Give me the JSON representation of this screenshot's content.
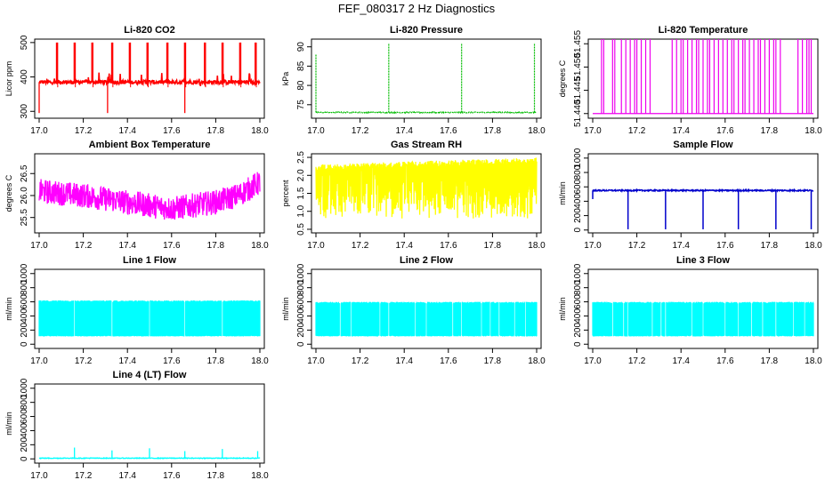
{
  "page": {
    "title": "FEF_080317  2 Hz Diagnostics"
  },
  "chart_data": [
    {
      "type": "line",
      "title": "Li-820 CO2",
      "ylabel": "Licor ppm",
      "color": "#ff0000",
      "pattern": "co2",
      "xlim": [
        17.0,
        18.0
      ],
      "ylim": [
        280,
        510
      ],
      "x_ticks": [
        "17.0",
        "17.2",
        "17.4",
        "17.6",
        "17.8",
        "18.0"
      ],
      "y_ticks": [
        {
          "v": 300,
          "label": "300"
        },
        {
          "v": 400,
          "label": "400"
        },
        {
          "v": 500,
          "label": "500"
        }
      ],
      "baseline": 385,
      "spikes_up": [
        17.08,
        17.16,
        17.24,
        17.33,
        17.41,
        17.49,
        17.58,
        17.66,
        17.75,
        17.83,
        17.91,
        17.98
      ],
      "spike_top": 500,
      "dips_to": 295
    },
    {
      "type": "line",
      "title": "Li-820 Pressure",
      "ylabel": "kPa",
      "color": "#00bb00",
      "pattern": "pressure",
      "xlim": [
        17.0,
        18.0
      ],
      "ylim": [
        71.5,
        92
      ],
      "x_ticks": [
        "17.0",
        "17.2",
        "17.4",
        "17.6",
        "17.8",
        "18.0"
      ],
      "y_ticks": [
        {
          "v": 75,
          "label": "75"
        },
        {
          "v": 80,
          "label": "80"
        },
        {
          "v": 85,
          "label": "85"
        },
        {
          "v": 90,
          "label": "90"
        }
      ],
      "baseline": 73,
      "spikes": [
        {
          "x": 17.0,
          "top": 88
        },
        {
          "x": 17.33,
          "top": 91
        },
        {
          "x": 17.66,
          "top": 91
        },
        {
          "x": 17.99,
          "top": 91
        }
      ]
    },
    {
      "type": "line",
      "title": "Li-820 Temperature",
      "ylabel": "degrees C",
      "color": "#ee00ee",
      "pattern": "temp",
      "xlim": [
        17.0,
        18.0
      ],
      "ylim": [
        51.4395,
        51.4565
      ],
      "x_ticks": [
        "17.0",
        "17.2",
        "17.4",
        "17.6",
        "17.8",
        "18.0"
      ],
      "y_ticks": [
        {
          "v": 51.4405,
          "label": "51.440"
        },
        {
          "v": 51.4455,
          "label": "51.445"
        },
        {
          "v": 51.4505,
          "label": "51.450"
        },
        {
          "v": 51.4555,
          "label": "51.455"
        }
      ],
      "low": 51.4405,
      "high": 51.4565,
      "jumps": [
        17.04,
        17.05,
        17.09,
        17.1,
        17.13,
        17.15,
        17.17,
        17.19,
        17.2,
        17.22,
        17.24,
        17.26,
        17.36,
        17.38,
        17.4,
        17.41,
        17.43,
        17.45,
        17.47,
        17.48,
        17.5,
        17.52,
        17.53,
        17.55,
        17.57,
        17.59,
        17.61,
        17.63,
        17.64,
        17.66,
        17.68,
        17.69,
        17.71,
        17.73,
        17.75,
        17.76,
        17.78,
        17.8,
        17.82,
        17.83,
        17.85,
        17.93,
        17.95,
        17.97,
        17.98,
        17.99
      ]
    },
    {
      "type": "line",
      "title": "Ambient Box Temperature",
      "ylabel": "degrees C",
      "color": "#ff00ff",
      "pattern": "ambient",
      "xlim": [
        17.0,
        18.0
      ],
      "ylim": [
        25.15,
        26.95
      ],
      "x_ticks": [
        "17.0",
        "17.2",
        "17.4",
        "17.6",
        "17.8",
        "18.0"
      ],
      "y_ticks": [
        {
          "v": 25.5,
          "label": "25.5"
        },
        {
          "v": 26.0,
          "label": "26.0"
        },
        {
          "v": 26.5,
          "label": "26.5"
        }
      ],
      "center": [
        {
          "x": 17.0,
          "y": 26.1
        },
        {
          "x": 17.2,
          "y": 26.0
        },
        {
          "x": 17.4,
          "y": 25.85
        },
        {
          "x": 17.6,
          "y": 25.7
        },
        {
          "x": 17.8,
          "y": 25.85
        },
        {
          "x": 17.9,
          "y": 26.0
        },
        {
          "x": 18.0,
          "y": 26.3
        }
      ],
      "spread": 0.28
    },
    {
      "type": "line",
      "title": "Gas Stream RH",
      "ylabel": "percent",
      "color": "#ffff00",
      "pattern": "rh",
      "xlim": [
        17.0,
        18.0
      ],
      "ylim": [
        0.4,
        2.6
      ],
      "x_ticks": [
        "17.0",
        "17.2",
        "17.4",
        "17.6",
        "17.8",
        "18.0"
      ],
      "y_ticks": [
        {
          "v": 0.5,
          "label": "0.5"
        },
        {
          "v": 1.0,
          "label": "1.0"
        },
        {
          "v": 1.5,
          "label": "1.5"
        },
        {
          "v": 2.0,
          "label": "2.0"
        },
        {
          "v": 2.5,
          "label": "2.5"
        }
      ],
      "top_start": 2.3,
      "top_end": 2.5,
      "low": 0.8
    },
    {
      "type": "line",
      "title": "Sample Flow",
      "ylabel": "ml/min",
      "color": "#0000cc",
      "pattern": "sample",
      "xlim": [
        17.0,
        18.0
      ],
      "ylim": [
        -40,
        1060
      ],
      "x_ticks": [
        "17.0",
        "17.2",
        "17.4",
        "17.6",
        "17.8",
        "18.0"
      ],
      "y_ticks": [
        {
          "v": 0,
          "label": "0"
        },
        {
          "v": 200,
          "label": "200"
        },
        {
          "v": 400,
          "label": "400"
        },
        {
          "v": 600,
          "label": "600"
        },
        {
          "v": 800,
          "label": "800"
        },
        {
          "v": 1000,
          "label": "1000"
        }
      ],
      "baseline": 550,
      "dips": [
        17.16,
        17.33,
        17.5,
        17.66,
        17.83,
        17.99
      ]
    },
    {
      "type": "line",
      "title": "Line 1 Flow",
      "ylabel": "ml/min",
      "color": "#00ffff",
      "pattern": "band",
      "xlim": [
        17.0,
        18.0
      ],
      "ylim": [
        -60,
        1060
      ],
      "x_ticks": [
        "17.0",
        "17.2",
        "17.4",
        "17.6",
        "17.8",
        "18.0"
      ],
      "y_ticks": [
        {
          "v": 0,
          "label": "0"
        },
        {
          "v": 200,
          "label": "200"
        },
        {
          "v": 400,
          "label": "400"
        },
        {
          "v": 600,
          "label": "600"
        },
        {
          "v": 800,
          "label": "800"
        },
        {
          "v": 1000,
          "label": "1000"
        }
      ],
      "high": 620,
      "low": 110,
      "gaps": [
        17.16,
        17.33,
        17.5,
        17.66,
        17.83
      ]
    },
    {
      "type": "line",
      "title": "Line 2 Flow",
      "ylabel": "ml/min",
      "color": "#00ffff",
      "pattern": "band",
      "xlim": [
        17.0,
        18.0
      ],
      "ylim": [
        -60,
        1060
      ],
      "x_ticks": [
        "17.0",
        "17.2",
        "17.4",
        "17.6",
        "17.8",
        "18.0"
      ],
      "y_ticks": [
        {
          "v": 0,
          "label": "0"
        },
        {
          "v": 200,
          "label": "200"
        },
        {
          "v": 400,
          "label": "400"
        },
        {
          "v": 600,
          "label": "600"
        },
        {
          "v": 800,
          "label": "800"
        },
        {
          "v": 1000,
          "label": "1000"
        }
      ],
      "high": 600,
      "low": 110,
      "gaps": [
        17.11,
        17.16,
        17.29,
        17.33,
        17.45,
        17.5,
        17.62,
        17.66,
        17.75,
        17.79,
        17.83,
        17.9,
        17.95
      ]
    },
    {
      "type": "line",
      "title": "Line 3 Flow",
      "ylabel": "ml/min",
      "color": "#00ffff",
      "pattern": "band",
      "xlim": [
        17.0,
        18.0
      ],
      "ylim": [
        -60,
        1060
      ],
      "x_ticks": [
        "17.0",
        "17.2",
        "17.4",
        "17.6",
        "17.8",
        "18.0"
      ],
      "y_ticks": [
        {
          "v": 0,
          "label": "0"
        },
        {
          "v": 200,
          "label": "200"
        },
        {
          "v": 400,
          "label": "400"
        },
        {
          "v": 600,
          "label": "600"
        },
        {
          "v": 800,
          "label": "800"
        },
        {
          "v": 1000,
          "label": "1000"
        }
      ],
      "high": 600,
      "low": 110,
      "gaps": [
        17.09,
        17.14,
        17.16,
        17.27,
        17.31,
        17.33,
        17.45,
        17.5,
        17.6,
        17.66,
        17.72,
        17.77,
        17.83,
        17.91,
        17.96
      ]
    },
    {
      "type": "line",
      "title": "Line 4 (LT) Flow",
      "ylabel": "ml/min",
      "color": "#00ffff",
      "pattern": "lt",
      "xlim": [
        17.0,
        18.0
      ],
      "ylim": [
        -60,
        1060
      ],
      "x_ticks": [
        "17.0",
        "17.2",
        "17.4",
        "17.6",
        "17.8",
        "18.0"
      ],
      "y_ticks": [
        {
          "v": 0,
          "label": "0"
        },
        {
          "v": 200,
          "label": "200"
        },
        {
          "v": 400,
          "label": "400"
        },
        {
          "v": 600,
          "label": "600"
        },
        {
          "v": 800,
          "label": "800"
        },
        {
          "v": 1000,
          "label": "1000"
        }
      ],
      "baseline": 10,
      "spikes": [
        {
          "x": 17.16,
          "top": 160
        },
        {
          "x": 17.33,
          "top": 120
        },
        {
          "x": 17.5,
          "top": 150
        },
        {
          "x": 17.66,
          "top": 110
        },
        {
          "x": 17.83,
          "top": 140
        },
        {
          "x": 17.99,
          "top": 110
        }
      ]
    }
  ]
}
